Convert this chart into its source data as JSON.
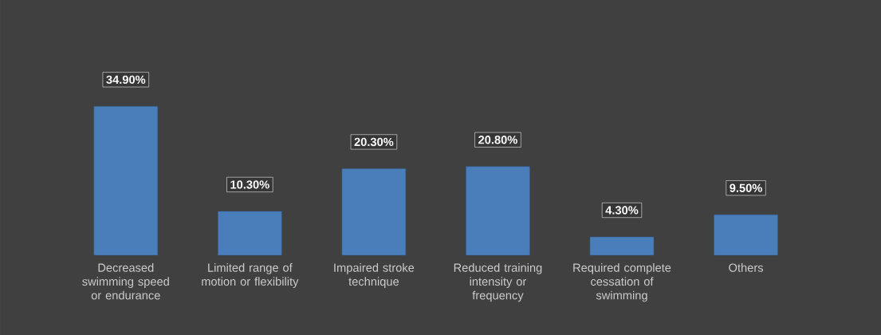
{
  "chart_data": {
    "type": "bar",
    "categories": [
      "Decreased swimming speed or endurance",
      "Limited range of motion or flexibility",
      "Impaired stroke technique",
      "Reduced training intensity or frequency",
      "Required complete cessation of swimming",
      "Others"
    ],
    "values": [
      34.9,
      10.3,
      20.3,
      20.8,
      4.3,
      9.5
    ],
    "value_labels": [
      "34.90%",
      "10.30%",
      "20.30%",
      "20.80%",
      "4.30%",
      "9.50%"
    ],
    "color": "#4a7ebb"
  }
}
